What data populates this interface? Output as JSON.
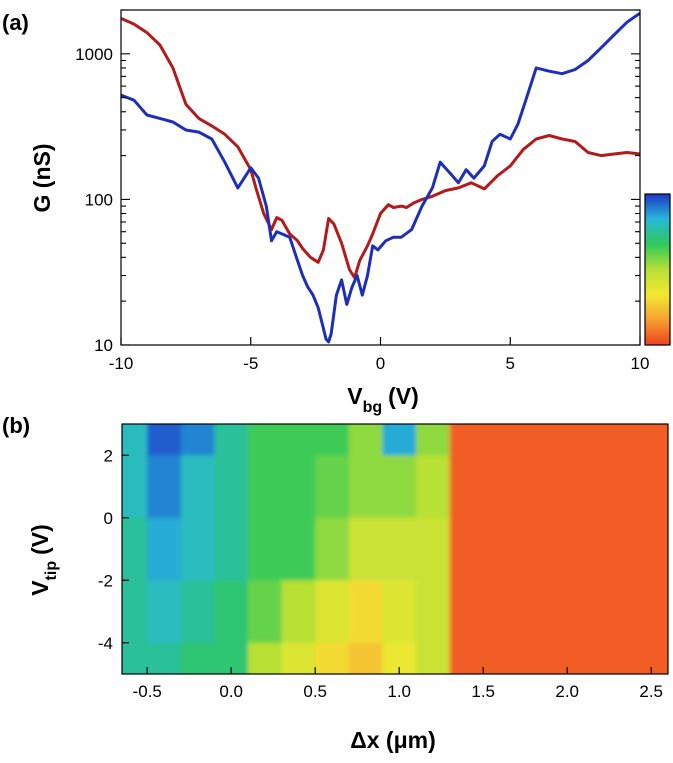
{
  "panel_a_label": "(a)",
  "panel_b_label": "(b)",
  "chart_data": [
    {
      "type": "line",
      "xlabel": "V",
      "xlabel_sub": "bg",
      "xlabel_unit": "(V)",
      "ylabel": "G (nS)",
      "xlim": [
        -10,
        10
      ],
      "ylim": [
        10,
        2000
      ],
      "yscale": "log",
      "x_ticks": [
        "-10",
        "-5",
        "0",
        "5",
        "10"
      ],
      "y_ticks": [
        "10",
        "100",
        "1000"
      ],
      "colorbar": {
        "colors": [
          "#1f36c8",
          "#28b8d8",
          "#2ec85a",
          "#b8e036",
          "#f2e830",
          "#f6a030",
          "#f04020"
        ]
      },
      "series": [
        {
          "color": "#b31b1b",
          "x": [
            -10,
            -9.5,
            -9,
            -8.5,
            -8,
            -7.5,
            -7,
            -6.5,
            -6,
            -5.5,
            -5,
            -4.8,
            -4.5,
            -4.2,
            -4,
            -3.8,
            -3.5,
            -3.2,
            -3,
            -2.7,
            -2.4,
            -2.2,
            -2,
            -1.8,
            -1.5,
            -1.2,
            -1,
            -0.8,
            -0.5,
            -0.3,
            0,
            0.3,
            0.5,
            0.8,
            1,
            1.3,
            1.6,
            2,
            2.5,
            3,
            3.5,
            4,
            4.5,
            5,
            5.5,
            6,
            6.5,
            7,
            7.5,
            8,
            8.5,
            9,
            9.5,
            10
          ],
          "y": [
            1750,
            1600,
            1400,
            1150,
            800,
            450,
            360,
            320,
            280,
            230,
            160,
            120,
            80,
            62,
            75,
            72,
            58,
            52,
            46,
            40,
            37,
            45,
            74,
            68,
            50,
            33,
            29,
            38,
            48,
            58,
            80,
            92,
            88,
            90,
            88,
            95,
            100,
            105,
            115,
            120,
            130,
            118,
            145,
            170,
            220,
            260,
            275,
            260,
            250,
            210,
            200,
            205,
            210,
            205
          ]
        },
        {
          "color": "#1d2fb8",
          "x": [
            -10,
            -9.5,
            -9,
            -8.5,
            -8,
            -7.5,
            -7,
            -6.5,
            -6,
            -5.5,
            -5,
            -4.7,
            -4.4,
            -4.2,
            -4,
            -3.8,
            -3.5,
            -3.2,
            -3,
            -2.8,
            -2.6,
            -2.4,
            -2.2,
            -2.1,
            -2,
            -1.9,
            -1.7,
            -1.5,
            -1.3,
            -1.1,
            -0.9,
            -0.7,
            -0.5,
            -0.3,
            -0.1,
            0.2,
            0.5,
            0.8,
            1.2,
            1.6,
            2,
            2.3,
            2.7,
            3,
            3.3,
            3.6,
            4,
            4.3,
            4.6,
            5,
            5.3,
            5.6,
            6,
            6.5,
            7,
            7.5,
            8,
            8.5,
            9,
            9.5,
            10
          ],
          "y": [
            520,
            480,
            380,
            360,
            340,
            300,
            290,
            260,
            180,
            120,
            165,
            140,
            90,
            52,
            60,
            58,
            55,
            38,
            30,
            25,
            22,
            18,
            13,
            11,
            10.5,
            12,
            22,
            28,
            19,
            25,
            30,
            22,
            30,
            48,
            45,
            52,
            55,
            55,
            62,
            90,
            120,
            180,
            150,
            130,
            160,
            140,
            170,
            250,
            280,
            260,
            330,
            480,
            800,
            760,
            730,
            780,
            900,
            1100,
            1350,
            1650,
            1900
          ]
        }
      ]
    },
    {
      "type": "heatmap",
      "xlabel": "Δx (μm)",
      "ylabel": "V",
      "ylabel_sub": "tip",
      "ylabel_unit": "(V)",
      "xlim": [
        -0.65,
        2.6
      ],
      "ylim": [
        -5,
        3
      ],
      "x_ticks": [
        "-0.5",
        "0.0",
        "0.5",
        "1.0",
        "1.5",
        "2.0",
        "2.5"
      ],
      "y_ticks": [
        "-4",
        "-2",
        "0",
        "2"
      ],
      "colormap": [
        "#1f36c8",
        "#28b8d8",
        "#2ec85a",
        "#b8e036",
        "#f2e830",
        "#f6a030",
        "#f04020"
      ],
      "grid": {
        "x": [
          -0.6,
          -0.4,
          -0.2,
          0.0,
          0.2,
          0.4,
          0.6,
          0.8,
          1.0,
          1.2,
          1.4,
          1.6,
          1.8,
          2.0,
          2.2,
          2.4,
          2.6
        ],
        "y": [
          3,
          1,
          -1,
          -3,
          -5
        ],
        "z": [
          [
            0.2,
            0.05,
            0.1,
            0.25,
            0.35,
            0.35,
            0.35,
            0.45,
            0.15,
            0.45,
            0.95,
            0.95,
            0.95,
            0.95,
            0.95,
            0.95,
            0.95
          ],
          [
            0.2,
            0.1,
            0.2,
            0.25,
            0.35,
            0.35,
            0.4,
            0.45,
            0.45,
            0.5,
            0.95,
            0.95,
            0.95,
            0.95,
            0.95,
            0.95,
            0.95
          ],
          [
            0.25,
            0.15,
            0.2,
            0.25,
            0.35,
            0.35,
            0.45,
            0.55,
            0.55,
            0.55,
            0.95,
            0.95,
            0.95,
            0.95,
            0.95,
            0.95,
            0.95
          ],
          [
            0.25,
            0.2,
            0.25,
            0.3,
            0.4,
            0.5,
            0.6,
            0.7,
            0.6,
            0.55,
            0.95,
            0.95,
            0.95,
            0.95,
            0.95,
            0.95,
            0.95
          ],
          [
            0.25,
            0.25,
            0.3,
            0.3,
            0.5,
            0.6,
            0.7,
            0.75,
            0.65,
            0.55,
            0.95,
            0.95,
            0.95,
            0.95,
            0.95,
            0.95,
            0.95
          ]
        ]
      }
    }
  ]
}
